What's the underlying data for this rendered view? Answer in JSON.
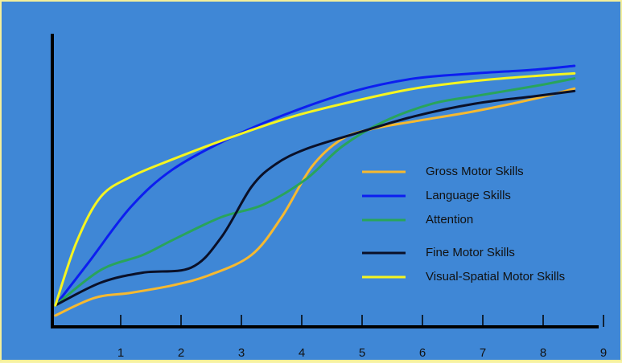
{
  "chart_data": {
    "type": "line",
    "xlabel": "",
    "ylabel": "",
    "xlim": [
      0,
      9
    ],
    "ylim": [
      0,
      100
    ],
    "x_ticks": [
      1,
      2,
      3,
      4,
      5,
      6,
      7,
      8,
      9
    ],
    "grid": false,
    "legend_position": "right-middle",
    "series": [
      {
        "name": "Gross Motor Skills",
        "color": "#f6b930",
        "points": [
          [
            0.05,
            1
          ],
          [
            0.7,
            8
          ],
          [
            1.3,
            10
          ],
          [
            2.0,
            13
          ],
          [
            2.6,
            17
          ],
          [
            3.3,
            25
          ],
          [
            3.8,
            40
          ],
          [
            4.3,
            60
          ],
          [
            4.8,
            71
          ],
          [
            5.3,
            75
          ],
          [
            6.0,
            78
          ],
          [
            7.0,
            82
          ],
          [
            8.0,
            87
          ],
          [
            8.65,
            91
          ]
        ]
      },
      {
        "name": "Language Skills",
        "color": "#0c1ef0",
        "points": [
          [
            0.05,
            5
          ],
          [
            0.6,
            22
          ],
          [
            1.3,
            44
          ],
          [
            2.0,
            59
          ],
          [
            3.0,
            72
          ],
          [
            4.0,
            82
          ],
          [
            5.0,
            90
          ],
          [
            6.0,
            95
          ],
          [
            7.0,
            97
          ],
          [
            8.0,
            98.5
          ],
          [
            8.65,
            100
          ]
        ]
      },
      {
        "name": "Attention",
        "color": "#29a45b",
        "points": [
          [
            0.05,
            5
          ],
          [
            0.8,
            19
          ],
          [
            1.5,
            25
          ],
          [
            2.0,
            31
          ],
          [
            2.8,
            40
          ],
          [
            3.5,
            45
          ],
          [
            4.2,
            55
          ],
          [
            4.8,
            68
          ],
          [
            5.5,
            78
          ],
          [
            6.3,
            85
          ],
          [
            7.0,
            88
          ],
          [
            8.0,
            92
          ],
          [
            8.65,
            95
          ]
        ]
      },
      {
        "name": "Fine Motor Skills",
        "color": "#0a1028",
        "points": [
          [
            0.05,
            5
          ],
          [
            0.8,
            14
          ],
          [
            1.5,
            18
          ],
          [
            2.3,
            20
          ],
          [
            2.8,
            32
          ],
          [
            3.3,
            52
          ],
          [
            3.7,
            61
          ],
          [
            4.2,
            67
          ],
          [
            5.0,
            73
          ],
          [
            6.0,
            80
          ],
          [
            7.0,
            85
          ],
          [
            8.0,
            88
          ],
          [
            8.65,
            90
          ]
        ]
      },
      {
        "name": "Visual-Spatial Motor Skills",
        "color": "#f5f520",
        "points": [
          [
            0.05,
            5
          ],
          [
            0.4,
            30
          ],
          [
            0.8,
            48
          ],
          [
            1.3,
            56
          ],
          [
            2.0,
            63
          ],
          [
            3.0,
            72
          ],
          [
            4.0,
            80
          ],
          [
            5.0,
            86
          ],
          [
            6.0,
            91
          ],
          [
            7.0,
            94
          ],
          [
            8.0,
            96
          ],
          [
            8.65,
            97
          ]
        ]
      }
    ]
  }
}
